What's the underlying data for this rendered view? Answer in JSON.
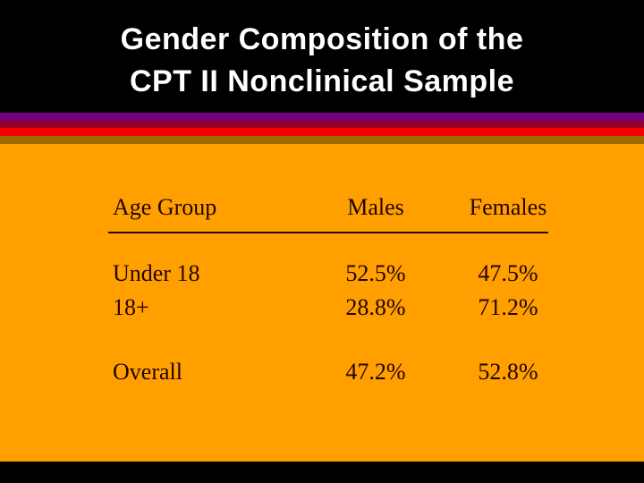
{
  "title": {
    "line1": "Gender Composition of the",
    "line2": "CPT II Nonclinical Sample"
  },
  "table": {
    "headers": [
      "Age Group",
      "Males",
      "Females"
    ],
    "rows": [
      {
        "label": "Under 18",
        "males": "52.5%",
        "females": "47.5%"
      },
      {
        "label": "18+",
        "males": "28.8%",
        "females": "71.2%"
      },
      {
        "label": "Overall",
        "males": "47.2%",
        "females": "52.8%"
      }
    ]
  },
  "colors": {
    "slide_background": "#000000",
    "title_text": "#ffffff",
    "stripe_purple": "#730082",
    "stripe_maroon": "#92002a",
    "stripe_red": "#f50000",
    "stripe_olive": "#9b6a00",
    "body_background": "#ffa000",
    "table_text": "#230500",
    "rule_color": "#2b0500"
  }
}
